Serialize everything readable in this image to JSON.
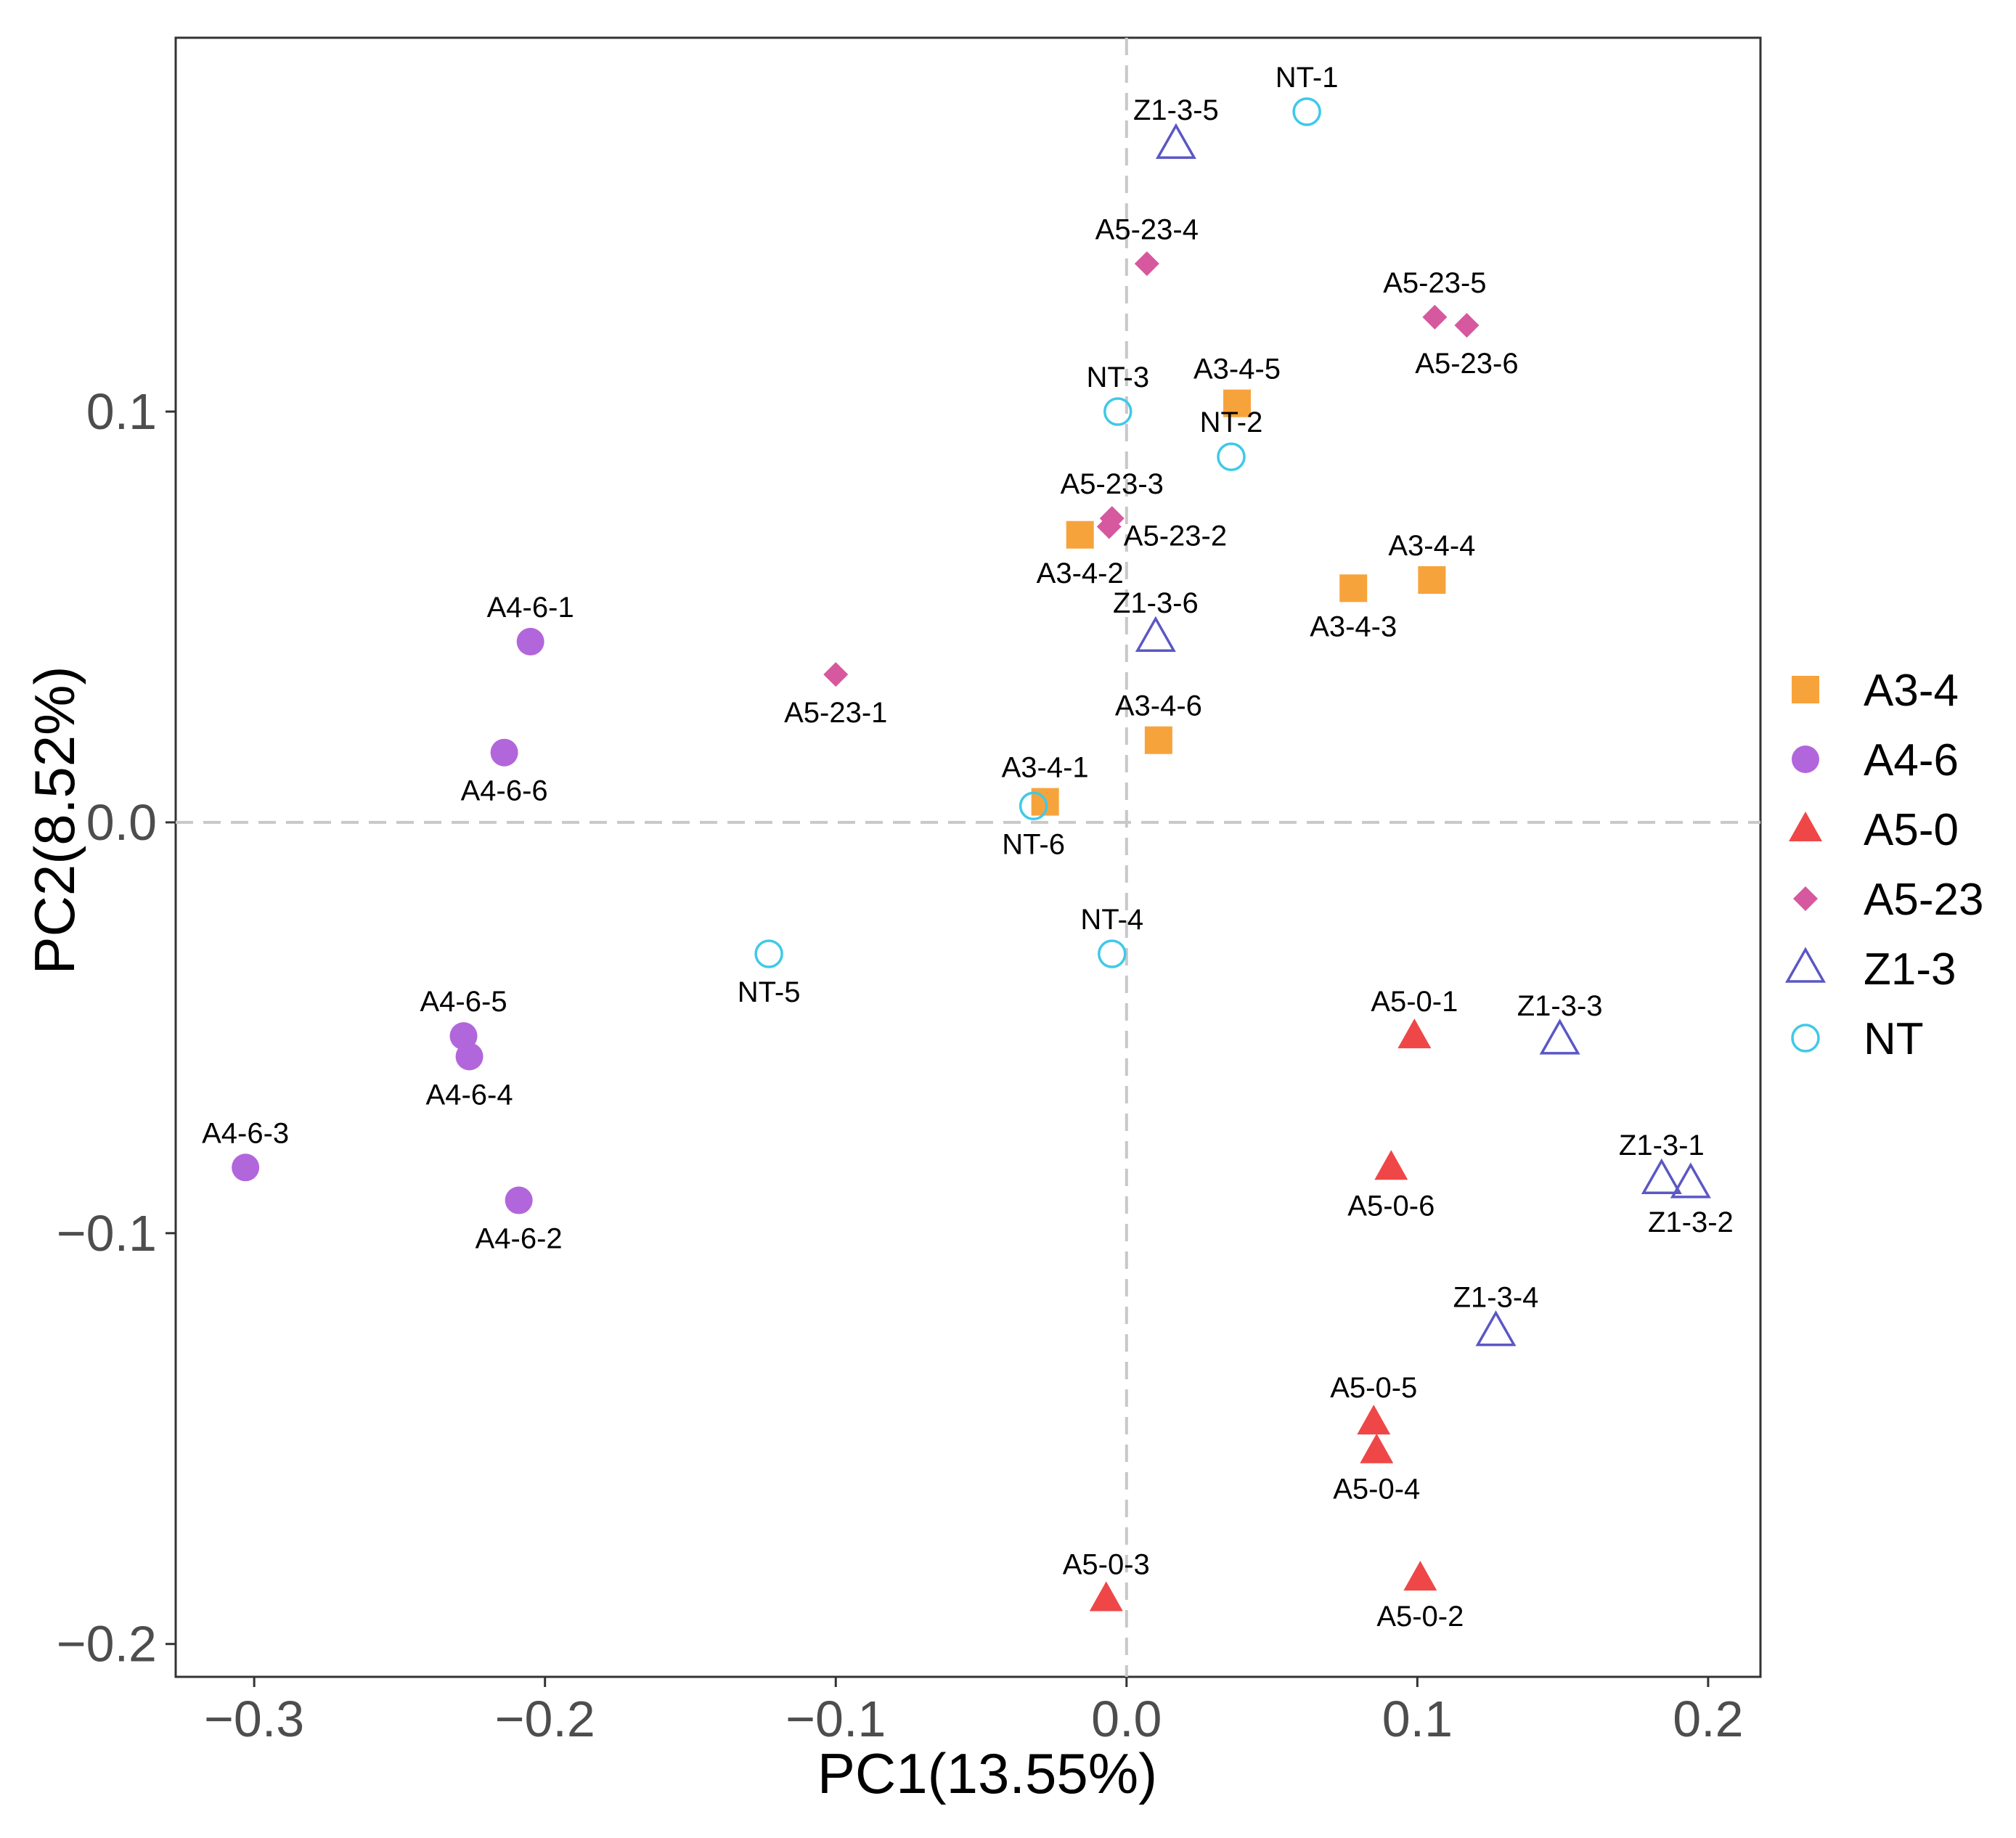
{
  "chart_data": {
    "type": "scatter",
    "title": "",
    "xlabel": "PC1(13.55%)",
    "ylabel": "PC2(8.52%)",
    "xlim": [
      -0.327,
      0.218
    ],
    "ylim": [
      -0.208,
      0.191
    ],
    "x_ticks": [
      -0.3,
      -0.2,
      -0.1,
      0.0,
      0.1,
      0.2
    ],
    "x_tick_labels": [
      "−0.3",
      "−0.2",
      "−0.1",
      "0.0",
      "0.1",
      "0.2"
    ],
    "y_ticks": [
      -0.2,
      -0.1,
      0.0,
      0.1
    ],
    "y_tick_labels": [
      "−0.2",
      "−0.1",
      "0.0",
      "0.1"
    ],
    "reference_lines": {
      "x": 0,
      "y": 0,
      "style": "dashed"
    },
    "grid": false,
    "legend_position": "right",
    "series": [
      {
        "name": "A3-4",
        "marker": "square",
        "color": "#F7A33C",
        "filled": true,
        "points": [
          {
            "label": "A3-4-1",
            "x": -0.028,
            "y": 0.005,
            "label_pos": "above"
          },
          {
            "label": "A3-4-2",
            "x": -0.016,
            "y": 0.07,
            "label_pos": "below"
          },
          {
            "label": "A3-4-3",
            "x": 0.078,
            "y": 0.057,
            "label_pos": "below"
          },
          {
            "label": "A3-4-4",
            "x": 0.105,
            "y": 0.059,
            "label_pos": "above"
          },
          {
            "label": "A3-4-5",
            "x": 0.038,
            "y": 0.102,
            "label_pos": "above"
          },
          {
            "label": "A3-4-6",
            "x": 0.011,
            "y": 0.02,
            "label_pos": "above"
          }
        ]
      },
      {
        "name": "A4-6",
        "marker": "circle",
        "color": "#B266DB",
        "filled": true,
        "points": [
          {
            "label": "A4-6-1",
            "x": -0.205,
            "y": 0.044,
            "label_pos": "above"
          },
          {
            "label": "A4-6-2",
            "x": -0.209,
            "y": -0.092,
            "label_pos": "below"
          },
          {
            "label": "A4-6-3",
            "x": -0.303,
            "y": -0.084,
            "label_pos": "above"
          },
          {
            "label": "A4-6-4",
            "x": -0.226,
            "y": -0.057,
            "label_pos": "below"
          },
          {
            "label": "A4-6-5",
            "x": -0.228,
            "y": -0.052,
            "label_pos": "above"
          },
          {
            "label": "A4-6-6",
            "x": -0.214,
            "y": 0.017,
            "label_pos": "below"
          }
        ]
      },
      {
        "name": "A5-0",
        "marker": "triangle",
        "color": "#EF4747",
        "filled": true,
        "points": [
          {
            "label": "A5-0-1",
            "x": 0.099,
            "y": -0.052,
            "label_pos": "above"
          },
          {
            "label": "A5-0-2",
            "x": 0.101,
            "y": -0.184,
            "label_pos": "below"
          },
          {
            "label": "A5-0-3",
            "x": -0.007,
            "y": -0.189,
            "label_pos": "above"
          },
          {
            "label": "A5-0-4",
            "x": 0.086,
            "y": -0.153,
            "label_pos": "below"
          },
          {
            "label": "A5-0-5",
            "x": 0.085,
            "y": -0.146,
            "label_pos": "above"
          },
          {
            "label": "A5-0-6",
            "x": 0.091,
            "y": -0.084,
            "label_pos": "below"
          }
        ]
      },
      {
        "name": "A5-23",
        "marker": "diamond",
        "color": "#D6589E",
        "filled": true,
        "points": [
          {
            "label": "A5-23-1",
            "x": -0.1,
            "y": 0.036,
            "label_pos": "below"
          },
          {
            "label": "A5-23-2",
            "x": -0.006,
            "y": 0.072,
            "label_pos": "right-below"
          },
          {
            "label": "A5-23-3",
            "x": -0.005,
            "y": 0.074,
            "label_pos": "above"
          },
          {
            "label": "A5-23-4",
            "x": 0.007,
            "y": 0.136,
            "label_pos": "above"
          },
          {
            "label": "A5-23-5",
            "x": 0.106,
            "y": 0.123,
            "label_pos": "above"
          },
          {
            "label": "A5-23-6",
            "x": 0.117,
            "y": 0.121,
            "label_pos": "below"
          }
        ]
      },
      {
        "name": "Z1-3",
        "marker": "triangle-open",
        "color": "#5B57C4",
        "filled": false,
        "points": [
          {
            "label": "Z1-3-1",
            "x": 0.184,
            "y": -0.087,
            "label_pos": "above"
          },
          {
            "label": "Z1-3-2",
            "x": 0.194,
            "y": -0.088,
            "label_pos": "below"
          },
          {
            "label": "Z1-3-3",
            "x": 0.149,
            "y": -0.053,
            "label_pos": "above"
          },
          {
            "label": "Z1-3-4",
            "x": 0.127,
            "y": -0.124,
            "label_pos": "above"
          },
          {
            "label": "Z1-3-5",
            "x": 0.017,
            "y": 0.165,
            "label_pos": "above"
          },
          {
            "label": "Z1-3-6",
            "x": 0.01,
            "y": 0.045,
            "label_pos": "above"
          }
        ]
      },
      {
        "name": "NT",
        "marker": "circle-open",
        "color": "#3FC9E8",
        "filled": false,
        "points": [
          {
            "label": "NT-1",
            "x": 0.062,
            "y": 0.173,
            "label_pos": "above"
          },
          {
            "label": "NT-2",
            "x": 0.036,
            "y": 0.089,
            "label_pos": "above"
          },
          {
            "label": "NT-3",
            "x": -0.003,
            "y": 0.1,
            "label_pos": "above"
          },
          {
            "label": "NT-4",
            "x": -0.005,
            "y": -0.032,
            "label_pos": "above"
          },
          {
            "label": "NT-5",
            "x": -0.123,
            "y": -0.032,
            "label_pos": "below"
          },
          {
            "label": "NT-6",
            "x": -0.032,
            "y": 0.004,
            "label_pos": "below"
          }
        ]
      }
    ]
  }
}
